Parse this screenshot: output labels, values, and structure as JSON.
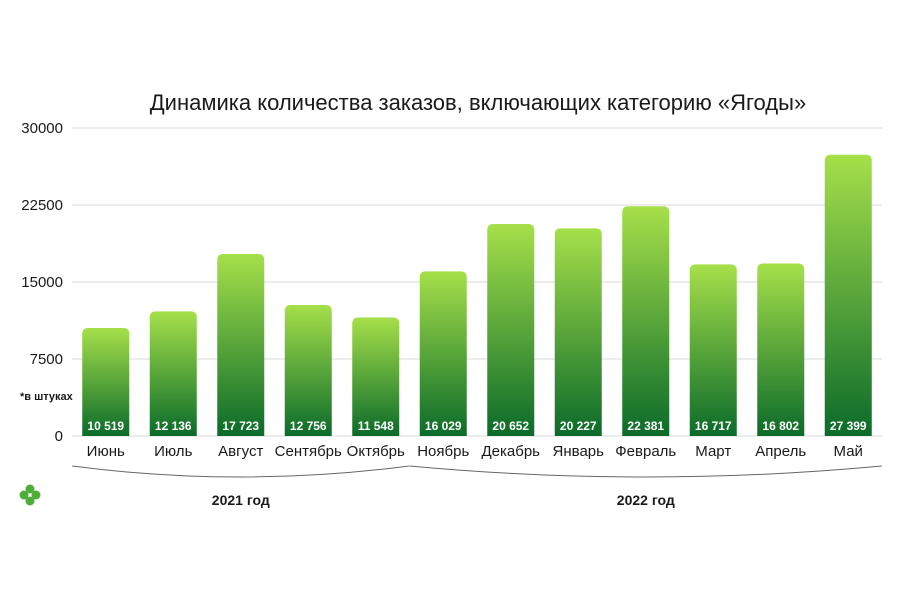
{
  "chart_data": {
    "type": "bar",
    "title": "Динамика количества заказов, включающих категорию «Ягоды»",
    "unit_note": "*в штуках",
    "categories": [
      "Июнь",
      "Июль",
      "Август",
      "Сентябрь",
      "Октябрь",
      "Ноябрь",
      "Декабрь",
      "Январь",
      "Февраль",
      "Март",
      "Апрель",
      "Май"
    ],
    "values": [
      10519,
      12136,
      17723,
      12756,
      11548,
      16029,
      20652,
      20227,
      22381,
      16717,
      16802,
      27399
    ],
    "value_labels": [
      "10 519",
      "12 136",
      "17 723",
      "12 756",
      "11 548",
      "16 029",
      "20 652",
      "20 227",
      "22 381",
      "16 717",
      "16 802",
      "27 399"
    ],
    "ylim": [
      0,
      30000
    ],
    "yticks": [
      0,
      7500,
      15000,
      22500,
      30000
    ],
    "ytick_labels": [
      "0",
      "7500",
      "15000",
      "22500",
      "30000"
    ],
    "grid": true,
    "groups": [
      {
        "label": "2021 год",
        "from": 0,
        "to": 4
      },
      {
        "label": "2022 год",
        "from": 5,
        "to": 11
      }
    ],
    "colors": {
      "bar_top": "#a6e04a",
      "bar_bottom": "#0b6b2a",
      "logo": "#4fae3a"
    }
  }
}
